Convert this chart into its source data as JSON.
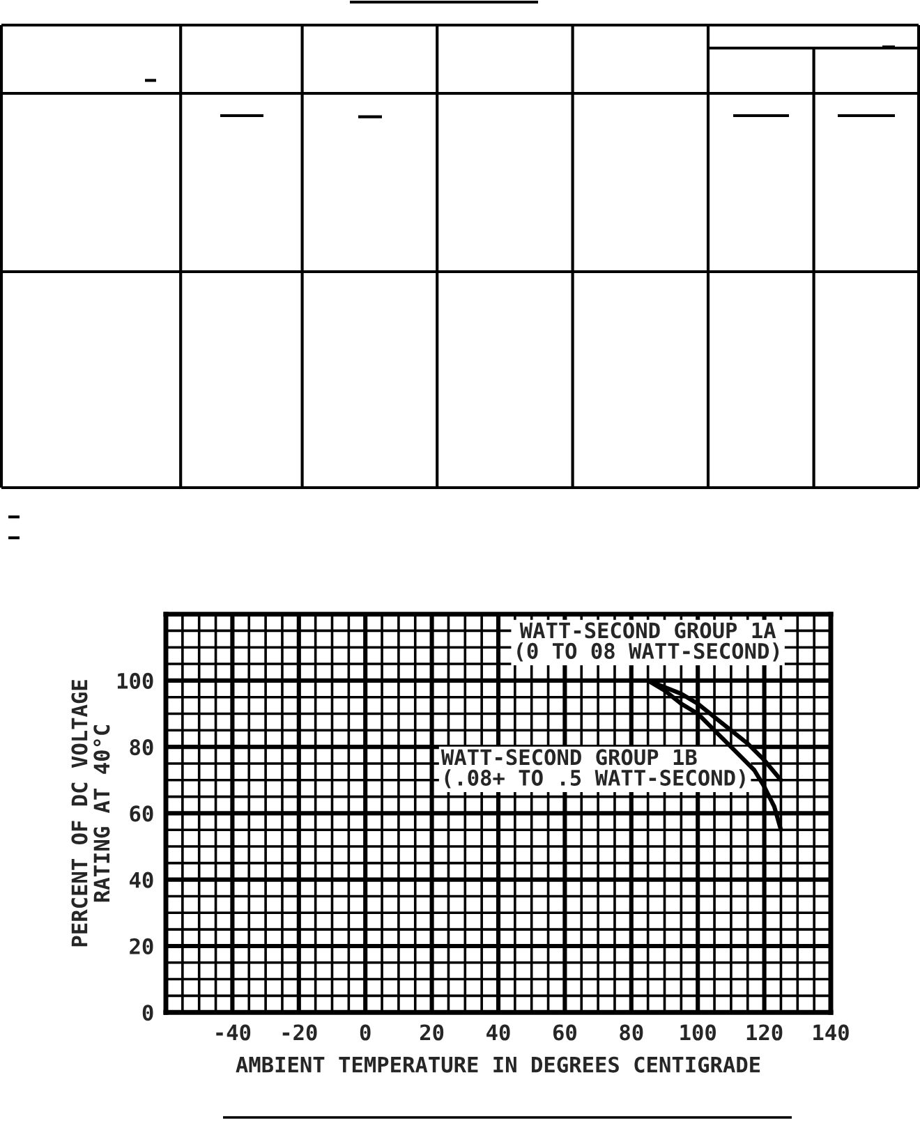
{
  "chart_data": {
    "type": "line",
    "xlabel": "AMBIENT TEMPERATURE IN DEGREES CENTIGRADE",
    "ylabel": "PERCENT OF DC VOLTAGE\nRATING AT 40°C",
    "series": [
      {
        "name": "WATT-SECOND GROUP 1A\n(0 TO 08 WATT-SECOND)",
        "color": "#000000",
        "x": [
          85,
          90,
          95,
          100,
          105,
          110,
          115,
          120,
          125
        ],
        "values": [
          100,
          98,
          96,
          93,
          89,
          85,
          81,
          76,
          70
        ]
      },
      {
        "name": "WATT-SECOND GROUP 1B\n(.08+ TO .5 WATT-SECOND)",
        "color": "#000000",
        "x": [
          85,
          90,
          95,
          100,
          105,
          110,
          113,
          117,
          120,
          123,
          125
        ],
        "values": [
          100,
          97,
          93,
          90,
          85,
          80,
          77,
          73,
          68,
          62,
          55
        ]
      }
    ],
    "xlim": [
      -60,
      140
    ],
    "ylim": [
      0,
      120
    ],
    "xticks": [
      {
        "value": -60,
        "label": null
      },
      {
        "value": -55,
        "label": null
      },
      {
        "value": -50,
        "label": null
      },
      {
        "value": -45,
        "label": null
      },
      -40,
      {
        "value": -35,
        "label": null
      },
      {
        "value": -30,
        "label": null
      },
      {
        "value": -25,
        "label": null
      },
      -20,
      {
        "value": -15,
        "label": null
      },
      {
        "value": -10,
        "label": null
      },
      {
        "value": -5,
        "label": null
      },
      0,
      {
        "value": 5,
        "label": null
      },
      {
        "value": 10,
        "label": null
      },
      {
        "value": 15,
        "label": null
      },
      20,
      {
        "value": 25,
        "label": null
      },
      {
        "value": 30,
        "label": null
      },
      {
        "value": 35,
        "label": null
      },
      40,
      {
        "value": 45,
        "label": null
      },
      {
        "value": 50,
        "label": null
      },
      {
        "value": 55,
        "label": null
      },
      60,
      {
        "value": 65,
        "label": null
      },
      {
        "value": 70,
        "label": null
      },
      {
        "value": 75,
        "label": null
      },
      80,
      {
        "value": 85,
        "label": null
      },
      {
        "value": 90,
        "label": null
      },
      {
        "value": 95,
        "label": null
      },
      100,
      {
        "value": 105,
        "label": null
      },
      {
        "value": 110,
        "label": null
      },
      {
        "value": 115,
        "label": null
      },
      120,
      {
        "value": 125,
        "label": null
      },
      {
        "value": 130,
        "label": null
      },
      {
        "value": 135,
        "label": null
      },
      140
    ],
    "yticks": [
      0,
      {
        "value": 5,
        "label": null
      },
      {
        "value": 10,
        "label": null
      },
      {
        "value": 15,
        "label": null
      },
      20,
      {
        "value": 25,
        "label": null
      },
      {
        "value": 30,
        "label": null
      },
      {
        "value": 35,
        "label": null
      },
      40,
      {
        "value": 45,
        "label": null
      },
      {
        "value": 50,
        "label": null
      },
      {
        "value": 55,
        "label": null
      },
      60,
      {
        "value": 65,
        "label": null
      },
      {
        "value": 70,
        "label": null
      },
      {
        "value": 75,
        "label": null
      },
      80,
      {
        "value": 85,
        "label": null
      },
      {
        "value": 90,
        "label": null
      },
      {
        "value": 95,
        "label": null
      },
      100,
      {
        "value": 105,
        "label": null
      },
      {
        "value": 110,
        "label": null
      },
      {
        "value": 115,
        "label": null
      },
      {
        "value": 120,
        "label": null
      }
    ],
    "grid": true
  }
}
